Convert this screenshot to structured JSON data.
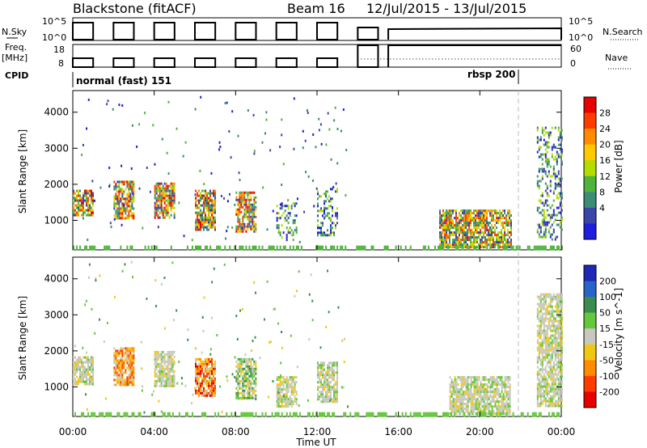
{
  "header": {
    "station": "Blackstone (fitACF)",
    "beam": "Beam 16",
    "dates": "12/Jul/2015 - 13/Jul/2015"
  },
  "control_panels": {
    "nsky_label": "N.Sky",
    "nsky_ticks": [
      "10^5",
      "10^0"
    ],
    "nsearch_label": "N.Search",
    "nsearch_ticks": [
      "10^5",
      "10^0"
    ],
    "freq_label": "Freq.",
    "freq_unit": "[MHz]",
    "freq_ticks": [
      "18",
      "8"
    ],
    "nave_label": "Nave",
    "nave_ticks": [
      "60",
      "0"
    ],
    "cpid_label": "CPID",
    "cpid_modes": [
      "normal (fast) 151",
      "rbsp 200"
    ]
  },
  "colorbars": {
    "power_label": "Power [dB]",
    "power_ticks": [
      "28",
      "24",
      "20",
      "16",
      "12",
      "8",
      "4"
    ],
    "power_colors": [
      "#e60000",
      "#ff3c00",
      "#ff8c00",
      "#ffc800",
      "#b4dc00",
      "#50b43c",
      "#3c8c78",
      "#3c46aa",
      "#1e1edc"
    ],
    "velocity_label": "Velocity [m s^-1]",
    "velocity_ticks": [
      "200",
      "100",
      "50",
      "15",
      "-15",
      "-50",
      "-100",
      "-200"
    ],
    "velocity_colors": [
      "#1e28b4",
      "#2864c8",
      "#3c8c50",
      "#64c83c",
      "#c8c8c0",
      "#f0c814",
      "#ff8c00",
      "#ff3c00",
      "#e60000"
    ]
  },
  "chart_data": [
    {
      "type": "heatmap",
      "panel": "power",
      "ylabel": "Slant Range [km]",
      "ylim": [
        180,
        4600
      ],
      "yticks": [
        1000,
        2000,
        3000,
        4000
      ],
      "xlim": [
        0,
        24
      ],
      "scatter_blobs": [
        {
          "t0": 0.0,
          "t1": 1.0,
          "r0": 1150,
          "r1": 1850,
          "kind": "strong"
        },
        {
          "t0": 2.0,
          "t1": 3.0,
          "r0": 1050,
          "r1": 2100,
          "kind": "strong"
        },
        {
          "t0": 4.0,
          "t1": 5.0,
          "r0": 1100,
          "r1": 2050,
          "kind": "strong"
        },
        {
          "t0": 6.0,
          "t1": 7.0,
          "r0": 750,
          "r1": 1850,
          "kind": "strong"
        },
        {
          "t0": 8.0,
          "t1": 9.0,
          "r0": 700,
          "r1": 1800,
          "kind": "strong"
        },
        {
          "t0": 10.0,
          "t1": 11.0,
          "r0": 450,
          "r1": 1500,
          "kind": "weak"
        },
        {
          "t0": 12.0,
          "t1": 13.0,
          "r0": 600,
          "r1": 1900,
          "kind": "weak"
        },
        {
          "t0": 18.0,
          "t1": 21.5,
          "r0": 250,
          "r1": 1300,
          "kind": "mid"
        },
        {
          "t0": 22.8,
          "t1": 24.0,
          "r0": 500,
          "r1": 3600,
          "kind": "weak"
        }
      ]
    },
    {
      "type": "heatmap",
      "panel": "velocity",
      "ylabel": "Slant Range [km]",
      "xlabel": "Time UT",
      "ylim": [
        180,
        4600
      ],
      "yticks": [
        1000,
        2000,
        3000,
        4000
      ],
      "xlim": [
        0,
        24
      ],
      "xticks": [
        "00:00",
        "04:00",
        "08:00",
        "12:00",
        "16:00",
        "20:00",
        "00:00"
      ],
      "scatter_blobs": [
        {
          "t0": 0.0,
          "t1": 1.0,
          "r0": 1100,
          "r1": 1850,
          "kind": "grey"
        },
        {
          "t0": 2.0,
          "t1": 3.0,
          "r0": 1050,
          "r1": 2100,
          "kind": "orange"
        },
        {
          "t0": 4.0,
          "t1": 5.0,
          "r0": 1050,
          "r1": 2000,
          "kind": "grey"
        },
        {
          "t0": 6.0,
          "t1": 7.0,
          "r0": 750,
          "r1": 1800,
          "kind": "red"
        },
        {
          "t0": 8.0,
          "t1": 9.0,
          "r0": 700,
          "r1": 1800,
          "kind": "green"
        },
        {
          "t0": 10.0,
          "t1": 11.0,
          "r0": 450,
          "r1": 1300,
          "kind": "grey"
        },
        {
          "t0": 12.0,
          "t1": 13.0,
          "r0": 600,
          "r1": 1700,
          "kind": "grey"
        },
        {
          "t0": 18.5,
          "t1": 21.5,
          "r0": 250,
          "r1": 1300,
          "kind": "grey"
        },
        {
          "t0": 22.8,
          "t1": 24.0,
          "r0": 500,
          "r1": 3600,
          "kind": "grey"
        }
      ]
    }
  ]
}
